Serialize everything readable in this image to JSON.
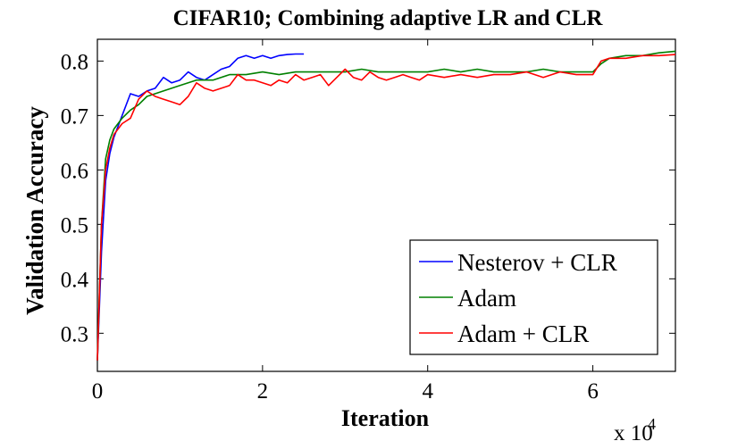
{
  "chart_data": {
    "type": "line",
    "title": "CIFAR10;  Combining adaptive LR and CLR",
    "xlabel": "Iteration",
    "ylabel": "Validation Accuracy",
    "x_multiplier": "x 10",
    "x_multiplier_exponent": "4",
    "xlim": [
      0,
      7
    ],
    "ylim": [
      0.23,
      0.84
    ],
    "xticks": [
      0,
      2,
      4,
      6
    ],
    "xtick_labels": [
      "0",
      "2",
      "4",
      "6"
    ],
    "yticks": [
      0.3,
      0.4,
      0.5,
      0.6,
      0.7,
      0.8
    ],
    "ytick_labels": [
      "0.3",
      "0.4",
      "0.5",
      "0.6",
      "0.7",
      "0.8"
    ],
    "grid": false,
    "legend_position": "bottom-right",
    "series": [
      {
        "name": "Nesterov + CLR",
        "color": "#0000ff",
        "x": [
          0,
          0.05,
          0.1,
          0.15,
          0.2,
          0.3,
          0.4,
          0.5,
          0.6,
          0.7,
          0.8,
          0.9,
          1.0,
          1.1,
          1.2,
          1.3,
          1.4,
          1.5,
          1.6,
          1.7,
          1.8,
          1.9,
          2.0,
          2.1,
          2.2,
          2.3,
          2.4,
          2.5
        ],
        "y": [
          0.25,
          0.45,
          0.58,
          0.63,
          0.66,
          0.7,
          0.74,
          0.735,
          0.745,
          0.75,
          0.77,
          0.76,
          0.765,
          0.78,
          0.77,
          0.765,
          0.775,
          0.785,
          0.79,
          0.805,
          0.81,
          0.805,
          0.81,
          0.805,
          0.81,
          0.812,
          0.813,
          0.813
        ]
      },
      {
        "name": "Adam",
        "color": "#008000",
        "x": [
          0,
          0.05,
          0.1,
          0.15,
          0.2,
          0.3,
          0.4,
          0.5,
          0.6,
          0.8,
          1.0,
          1.2,
          1.4,
          1.6,
          1.8,
          2.0,
          2.2,
          2.4,
          2.6,
          2.8,
          3.0,
          3.2,
          3.4,
          3.6,
          3.8,
          4.0,
          4.2,
          4.4,
          4.6,
          4.8,
          5.0,
          5.2,
          5.4,
          5.6,
          5.8,
          6.0,
          6.1,
          6.2,
          6.4,
          6.6,
          6.8,
          7.0
        ],
        "y": [
          0.25,
          0.5,
          0.62,
          0.655,
          0.675,
          0.695,
          0.71,
          0.72,
          0.735,
          0.745,
          0.755,
          0.765,
          0.765,
          0.775,
          0.775,
          0.78,
          0.775,
          0.78,
          0.78,
          0.78,
          0.78,
          0.785,
          0.78,
          0.78,
          0.78,
          0.78,
          0.785,
          0.78,
          0.785,
          0.78,
          0.78,
          0.78,
          0.785,
          0.78,
          0.78,
          0.78,
          0.795,
          0.805,
          0.81,
          0.81,
          0.815,
          0.818
        ]
      },
      {
        "name": "Adam + CLR",
        "color": "#ff0000",
        "x": [
          0,
          0.05,
          0.1,
          0.15,
          0.2,
          0.3,
          0.4,
          0.5,
          0.6,
          0.7,
          0.8,
          0.9,
          1.0,
          1.1,
          1.2,
          1.3,
          1.4,
          1.5,
          1.6,
          1.7,
          1.8,
          1.9,
          2.0,
          2.1,
          2.2,
          2.3,
          2.4,
          2.5,
          2.6,
          2.7,
          2.8,
          2.9,
          3.0,
          3.1,
          3.2,
          3.3,
          3.4,
          3.5,
          3.6,
          3.7,
          3.8,
          3.9,
          4.0,
          4.2,
          4.4,
          4.6,
          4.8,
          5.0,
          5.2,
          5.4,
          5.6,
          5.8,
          6.0,
          6.1,
          6.2,
          6.4,
          6.6,
          6.8,
          7.0
        ],
        "y": [
          0.25,
          0.5,
          0.6,
          0.64,
          0.665,
          0.685,
          0.695,
          0.73,
          0.745,
          0.735,
          0.73,
          0.725,
          0.72,
          0.735,
          0.76,
          0.75,
          0.745,
          0.75,
          0.755,
          0.775,
          0.765,
          0.765,
          0.76,
          0.755,
          0.765,
          0.76,
          0.775,
          0.765,
          0.77,
          0.775,
          0.755,
          0.77,
          0.785,
          0.77,
          0.765,
          0.78,
          0.77,
          0.765,
          0.77,
          0.775,
          0.77,
          0.765,
          0.775,
          0.77,
          0.775,
          0.77,
          0.775,
          0.775,
          0.78,
          0.77,
          0.78,
          0.775,
          0.775,
          0.8,
          0.805,
          0.805,
          0.81,
          0.81,
          0.812
        ]
      }
    ]
  }
}
